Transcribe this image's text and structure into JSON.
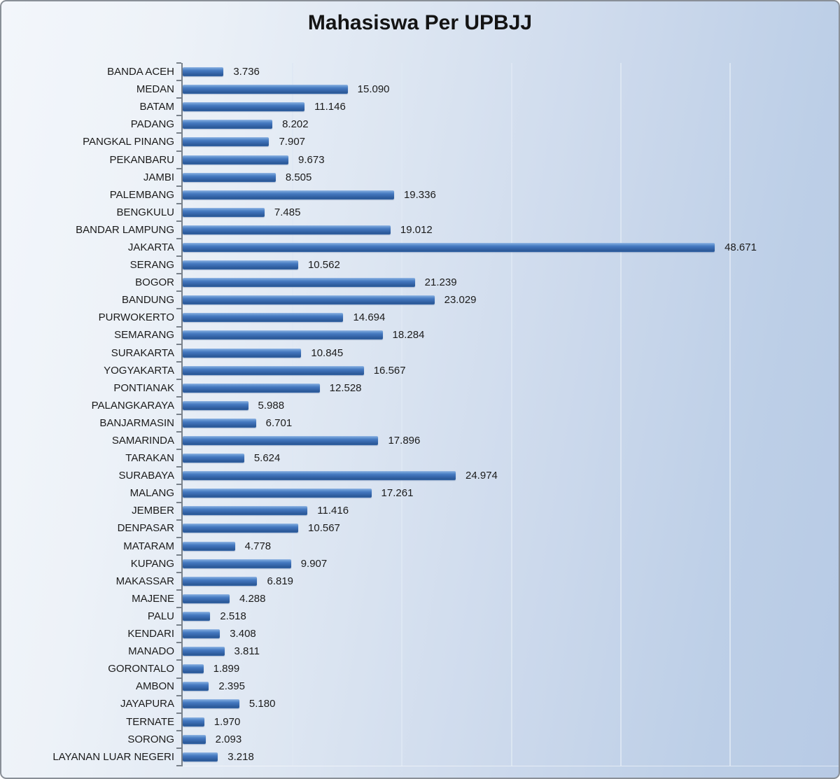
{
  "title": "Mahasiswa Per UPBJJ",
  "colors": {
    "bar_top": "#97b9e4",
    "bar_mid": "#3f72b8",
    "bar_bottom": "#2b5896",
    "axis_line": "#79818a",
    "gridline": "#dee8f3",
    "text": "#1b1b1b",
    "background_left": "#f3f6fb",
    "background_right": "#b7cae5"
  },
  "chart_data": {
    "type": "bar",
    "orientation": "horizontal",
    "title": "Mahasiswa Per UPBJJ",
    "xlabel": "",
    "ylabel": "",
    "xlim": [
      0,
      60000
    ],
    "gridline_interval": 10000,
    "grid": true,
    "legend": false,
    "categories": [
      "BANDA ACEH",
      "MEDAN",
      "BATAM",
      "PADANG",
      "PANGKAL PINANG",
      "PEKANBARU",
      "JAMBI",
      "PALEMBANG",
      "BENGKULU",
      "BANDAR LAMPUNG",
      "JAKARTA",
      "SERANG",
      "BOGOR",
      "BANDUNG",
      "PURWOKERTO",
      "SEMARANG",
      "SURAKARTA",
      "YOGYAKARTA",
      "PONTIANAK",
      "PALANGKARAYA",
      "BANJARMASIN",
      "SAMARINDA",
      "TARAKAN",
      "SURABAYA",
      "MALANG",
      "JEMBER",
      "DENPASAR",
      "MATARAM",
      "KUPANG",
      "MAKASSAR",
      "MAJENE",
      "PALU",
      "KENDARI",
      "MANADO",
      "GORONTALO",
      "AMBON",
      "JAYAPURA",
      "TERNATE",
      "SORONG",
      "LAYANAN LUAR NEGERI"
    ],
    "values": [
      3736,
      15090,
      11146,
      8202,
      7907,
      9673,
      8505,
      19336,
      7485,
      19012,
      48671,
      10562,
      21239,
      23029,
      14694,
      18284,
      10845,
      16567,
      12528,
      5988,
      6701,
      17896,
      5624,
      24974,
      17261,
      11416,
      10567,
      4778,
      9907,
      6819,
      4288,
      2518,
      3408,
      3811,
      1899,
      2395,
      5180,
      1970,
      2093,
      3218
    ],
    "value_labels": [
      "3.736",
      "15.090",
      "11.146",
      "8.202",
      "7.907",
      "9.673",
      "8.505",
      "19.336",
      "7.485",
      "19.012",
      "48.671",
      "10.562",
      "21.239",
      "23.029",
      "14.694",
      "18.284",
      "10.845",
      "16.567",
      "12.528",
      "5.988",
      "6.701",
      "17.896",
      "5.624",
      "24.974",
      "17.261",
      "11.416",
      "10.567",
      "4.778",
      "9.907",
      "6.819",
      "4.288",
      "2.518",
      "3.408",
      "3.811",
      "1.899",
      "2.395",
      "5.180",
      "1.970",
      "2.093",
      "3.218"
    ]
  }
}
